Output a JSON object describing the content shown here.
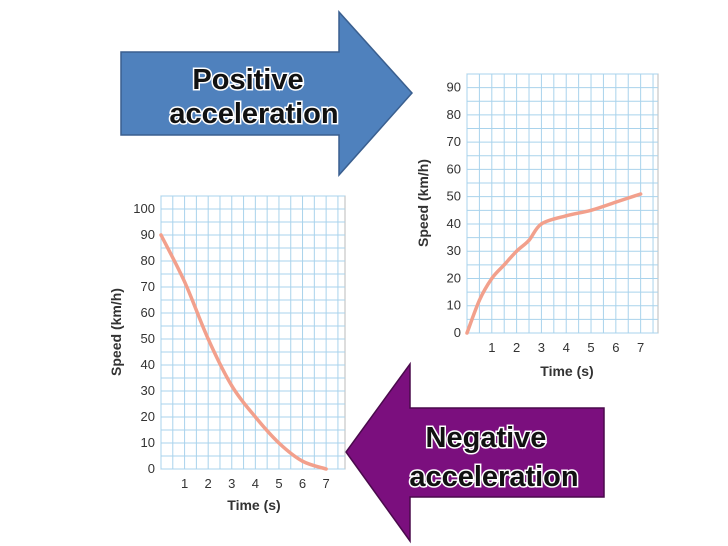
{
  "arrows": {
    "positive": {
      "line1": "Positive",
      "line2": "acceleration",
      "color": "#4f81bd"
    },
    "negative": {
      "line1": "Negative",
      "line2": "acceleration",
      "color": "#7b0f7e"
    }
  },
  "chart_data": [
    {
      "type": "line",
      "xlabel": "Time (s)",
      "ylabel": "Speed (km/h)",
      "xlim": [
        0,
        7.7
      ],
      "ylim": [
        0,
        95
      ],
      "xticks": [
        1,
        2,
        3,
        4,
        5,
        6,
        7
      ],
      "yticks": [
        0,
        10,
        20,
        30,
        40,
        50,
        60,
        70,
        80,
        90
      ],
      "x": [
        0,
        0.5,
        1,
        1.5,
        2,
        2.5,
        3,
        4,
        5,
        6,
        7
      ],
      "y": [
        0,
        12,
        20,
        25,
        30,
        34,
        40,
        43,
        45,
        48,
        51
      ],
      "line_color": "#f2a08c",
      "grid": true
    },
    {
      "type": "line",
      "xlabel": "Time (s)",
      "ylabel": "Speed (km/h)",
      "xlim": [
        0,
        7.8
      ],
      "ylim": [
        0,
        105
      ],
      "xticks": [
        1,
        2,
        3,
        4,
        5,
        6,
        7
      ],
      "yticks": [
        0,
        10,
        20,
        30,
        40,
        50,
        60,
        70,
        80,
        90,
        100
      ],
      "x": [
        0,
        1,
        2,
        3,
        4,
        5,
        6,
        7
      ],
      "y": [
        90,
        72,
        50,
        32,
        20,
        10,
        3,
        0
      ],
      "line_color": "#f2a08c",
      "grid": true
    }
  ]
}
